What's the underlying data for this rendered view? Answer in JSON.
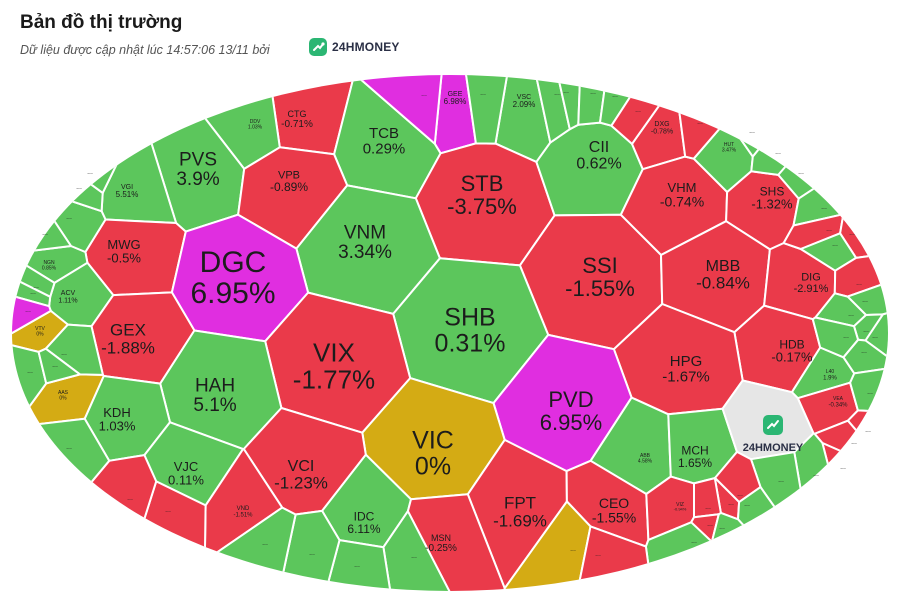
{
  "header": {
    "title": "Bản đồ thị trường",
    "subtitle": "Dữ liệu được cập nhật lúc 14:57:06 13/11 bởi",
    "brand": "24HMONEY"
  },
  "colors": {
    "up": "#5cc65c",
    "down": "#ea3a4a",
    "ceiling": "#e02ee0",
    "ref": "#d4ab14",
    "brand_cell": "#e6e6e6",
    "border": "#ffffff"
  },
  "map_brand": "24HMONEY",
  "more_label": "...",
  "cells": [
    {
      "code": "GEE",
      "pct": "6.98%",
      "status": "ceiling"
    },
    {
      "code": "VSC",
      "pct": "2.09%",
      "status": "up"
    },
    {
      "code": "CTG",
      "pct": "-0.71%",
      "status": "down"
    },
    {
      "code": "DDV",
      "pct": "1.03%",
      "status": "up"
    },
    {
      "code": "TCB",
      "pct": "0.29%",
      "status": "up"
    },
    {
      "code": "PVS",
      "pct": "3.9%",
      "status": "up"
    },
    {
      "code": "VPB",
      "pct": "-0.89%",
      "status": "down"
    },
    {
      "code": "STB",
      "pct": "-3.75%",
      "status": "down"
    },
    {
      "code": "CII",
      "pct": "0.62%",
      "status": "up"
    },
    {
      "code": "DXG",
      "pct": "-0.78%",
      "status": "down"
    },
    {
      "code": "HUT",
      "pct": "3.47%",
      "status": "up"
    },
    {
      "code": "VGI",
      "pct": "5.51%",
      "status": "up"
    },
    {
      "code": "VHM",
      "pct": "-0.74%",
      "status": "down"
    },
    {
      "code": "SHS",
      "pct": "-1.32%",
      "status": "down"
    },
    {
      "code": "VNM",
      "pct": "3.34%",
      "status": "up"
    },
    {
      "code": "MWG",
      "pct": "-0.5%",
      "status": "down"
    },
    {
      "code": "DGC",
      "pct": "6.95%",
      "status": "ceiling"
    },
    {
      "code": "SSI",
      "pct": "-1.55%",
      "status": "down"
    },
    {
      "code": "MBB",
      "pct": "-0.84%",
      "status": "down"
    },
    {
      "code": "NGN",
      "pct": "0.85%",
      "status": "up"
    },
    {
      "code": "DIG",
      "pct": "-2.91%",
      "status": "down"
    },
    {
      "code": "ACV",
      "pct": "1.11%",
      "status": "up"
    },
    {
      "code": "SHB",
      "pct": "0.31%",
      "status": "up"
    },
    {
      "code": "VTV",
      "pct": "0%",
      "status": "ref"
    },
    {
      "code": "GEX",
      "pct": "-1.88%",
      "status": "down"
    },
    {
      "code": "VIX",
      "pct": "-1.77%",
      "status": "down"
    },
    {
      "code": "HDB",
      "pct": "-0.17%",
      "status": "down"
    },
    {
      "code": "HPG",
      "pct": "-1.67%",
      "status": "down"
    },
    {
      "code": "L40",
      "pct": "1.9%",
      "status": "up"
    },
    {
      "code": "HAH",
      "pct": "5.1%",
      "status": "up"
    },
    {
      "code": "PVD",
      "pct": "6.95%",
      "status": "ceiling"
    },
    {
      "code": "AAS",
      "pct": "0%",
      "status": "ref"
    },
    {
      "code": "VEA",
      "pct": "-0.34%",
      "status": "down"
    },
    {
      "code": "KDH",
      "pct": "1.03%",
      "status": "up"
    },
    {
      "code": "VIC",
      "pct": "0%",
      "status": "ref"
    },
    {
      "code": "ABB",
      "pct": "4.58%",
      "status": "up"
    },
    {
      "code": "MCH",
      "pct": "1.65%",
      "status": "up"
    },
    {
      "code": "VJC",
      "pct": "0.11%",
      "status": "up"
    },
    {
      "code": "VCI",
      "pct": "-1.23%",
      "status": "down"
    },
    {
      "code": "VND",
      "pct": "-1.51%",
      "status": "down"
    },
    {
      "code": "IDC",
      "pct": "6.11%",
      "status": "up"
    },
    {
      "code": "FPT",
      "pct": "-1.69%",
      "status": "down"
    },
    {
      "code": "CEO",
      "pct": "-1.55%",
      "status": "down"
    },
    {
      "code": "VIZ",
      "pct": "-0.94%",
      "status": "down"
    },
    {
      "code": "MSN",
      "pct": "-0.25%",
      "status": "down"
    }
  ],
  "small_cells": [
    {
      "status": "up"
    },
    {
      "status": "up"
    },
    {
      "status": "up"
    },
    {
      "status": "ceiling"
    },
    {
      "status": "up"
    },
    {
      "status": "up"
    },
    {
      "status": "up"
    },
    {
      "status": "up"
    },
    {
      "status": "up"
    },
    {
      "status": "down"
    },
    {
      "status": "down"
    },
    {
      "status": "up"
    },
    {
      "status": "up"
    },
    {
      "status": "up"
    },
    {
      "status": "up"
    },
    {
      "status": "down"
    },
    {
      "status": "down"
    },
    {
      "status": "up"
    },
    {
      "status": "down"
    },
    {
      "status": "up"
    },
    {
      "status": "up"
    },
    {
      "status": "up"
    },
    {
      "status": "up"
    },
    {
      "status": "up"
    },
    {
      "status": "up"
    },
    {
      "status": "up"
    },
    {
      "status": "down"
    },
    {
      "status": "down"
    },
    {
      "status": "down"
    },
    {
      "status": "up"
    },
    {
      "status": "up"
    },
    {
      "status": "down"
    },
    {
      "status": "down"
    },
    {
      "status": "up"
    },
    {
      "status": "down"
    },
    {
      "status": "down"
    },
    {
      "status": "up"
    },
    {
      "status": "up"
    },
    {
      "status": "ref"
    },
    {
      "status": "down"
    },
    {
      "status": "up"
    },
    {
      "status": "up"
    },
    {
      "status": "up"
    },
    {
      "status": "up"
    },
    {
      "status": "down"
    },
    {
      "status": "down"
    },
    {
      "status": "up"
    },
    {
      "status": "up"
    }
  ]
}
